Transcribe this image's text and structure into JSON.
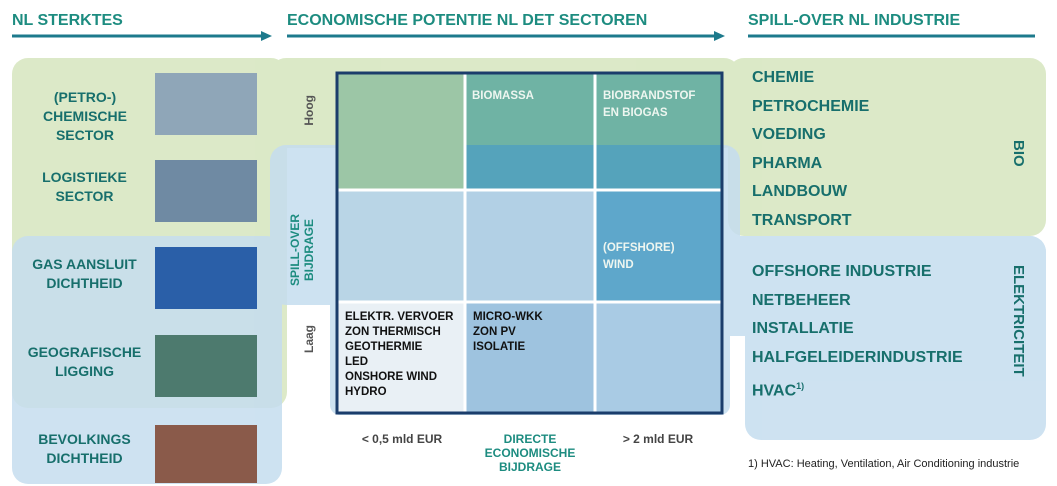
{
  "headers": [
    "NL STERKTES",
    "ECONOMISCHE POTENTIE NL DET SECTOREN",
    "SPILL-OVER NL INDUSTRIE"
  ],
  "strengths": [
    "(PETRO-) CHEMISCHE SECTOR",
    "LOGISTIEKE SECTOR",
    "GAS AANSLUIT DICHTHEID",
    "GEOGRAFISCHE LIGGING",
    "BEVOLKINGS DICHTHEID"
  ],
  "matrix": {
    "y_axis_label": "SPILL-OVER BIJDRAGE",
    "y_high": "Hoog",
    "y_low": "Laag",
    "x_low": "< 0,5 mld EUR",
    "x_axis_label": "DIRECTE ECONOMISCHE BIJDRAGE",
    "x_high": "> 2 mld EUR",
    "cells": {
      "top_middle": [
        "BIOMASSA"
      ],
      "top_right": [
        "BIOBRANDSTOF EN BIOGAS"
      ],
      "middle_right": [
        "(OFFSHORE) WIND"
      ],
      "bottom_left": [
        "ELEKTR. VERVOER",
        "ZON THERMISCH",
        "GEOTHERMIE",
        "LED",
        "ONSHORE WIND",
        "HYDRO"
      ],
      "bottom_middle": [
        "MICRO-WKK",
        "ZON PV",
        "ISOLATIE"
      ]
    }
  },
  "bio": {
    "label": "BIO",
    "items": [
      "CHEMIE",
      "PETROCHEMIE",
      "VOEDING",
      "PHARMA",
      "LANDBOUW",
      "TRANSPORT"
    ]
  },
  "elektriciteit": {
    "label": "ELEKTRICITEIT",
    "items": [
      {
        "text": "OFFSHORE INDUSTRIE"
      },
      {
        "text": "NETBEHEER"
      },
      {
        "text": "INSTALLATIE"
      },
      {
        "text": "HALFGELEIDERINDUSTRIE"
      },
      {
        "text": "HVAC",
        "sup": "1)"
      }
    ]
  },
  "footnote": "1) HVAC: Heating, Ventilation, Air Conditioning industrie"
}
